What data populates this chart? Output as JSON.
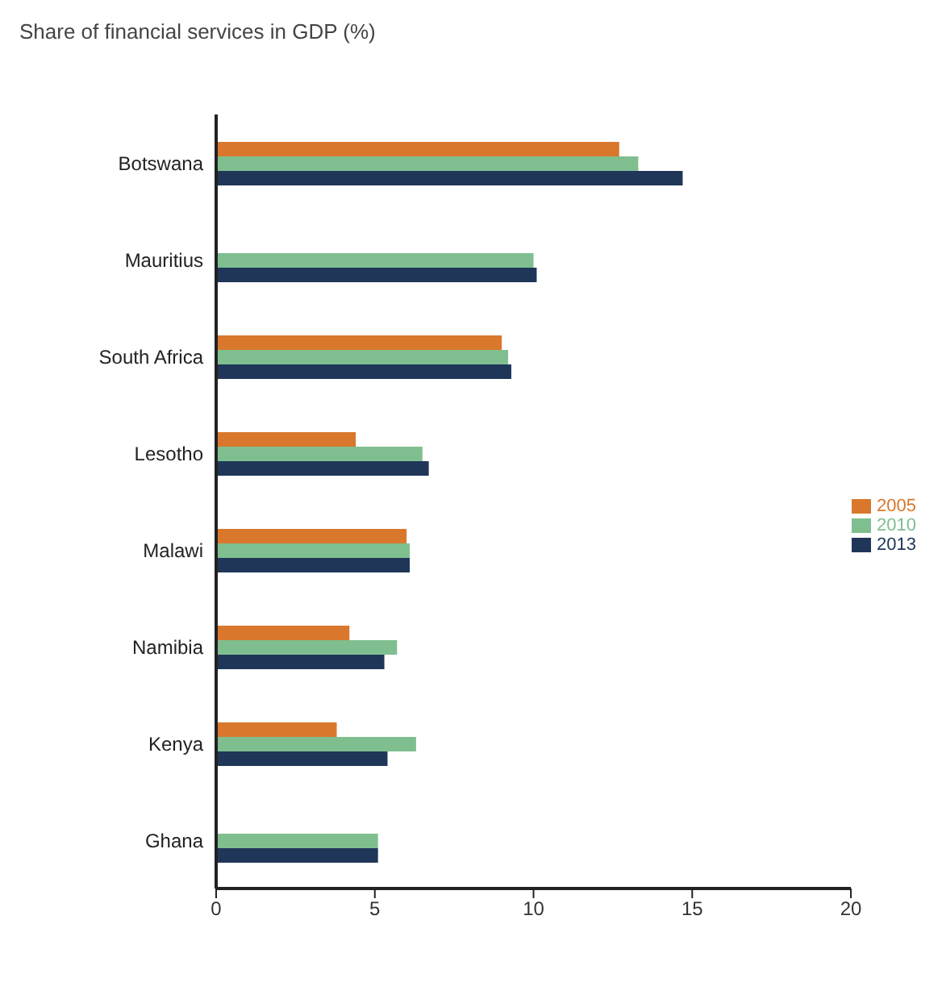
{
  "chart_data": {
    "type": "bar",
    "orientation": "horizontal",
    "title": "Share of financial services in GDP (%)",
    "categories": [
      "Botswana",
      "Mauritius",
      "South Africa",
      "Lesotho",
      "Malawi",
      "Namibia",
      "Kenya",
      "Ghana"
    ],
    "series": [
      {
        "name": "2005",
        "color": "#d9782d",
        "values": [
          12.7,
          null,
          9.0,
          4.4,
          6.0,
          4.2,
          3.8,
          null
        ]
      },
      {
        "name": "2010",
        "color": "#7fbf8f",
        "values": [
          13.3,
          10.0,
          9.2,
          6.5,
          6.1,
          5.7,
          6.3,
          5.1
        ]
      },
      {
        "name": "2013",
        "color": "#1f3658",
        "values": [
          14.7,
          10.1,
          9.3,
          6.7,
          6.1,
          5.3,
          5.4,
          5.1
        ]
      }
    ],
    "xlim": [
      0,
      20
    ],
    "xticks": [
      0,
      5,
      10,
      15,
      20
    ],
    "grid": false,
    "legend": "right"
  }
}
